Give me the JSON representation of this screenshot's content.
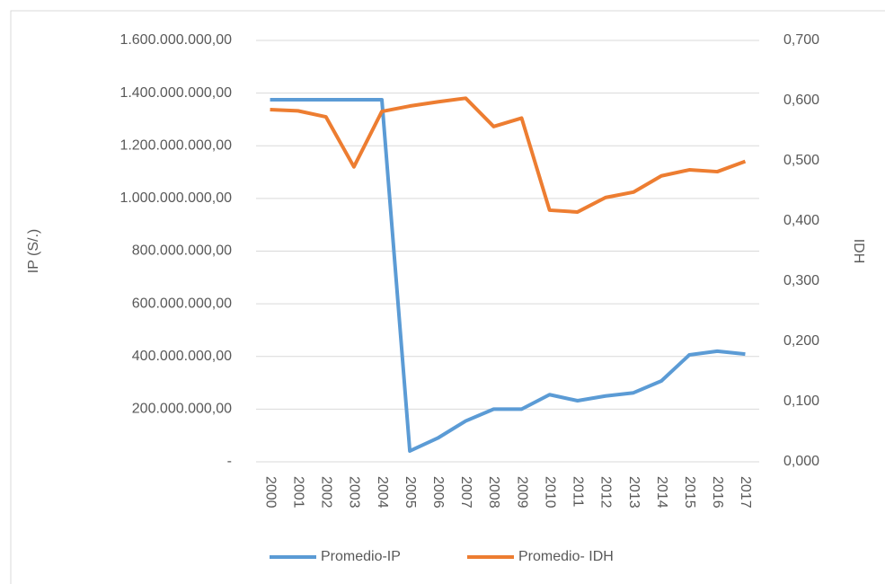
{
  "chart_data": {
    "type": "line",
    "categories": [
      "2000",
      "2001",
      "2002",
      "2003",
      "2004",
      "2005",
      "2006",
      "2007",
      "2008",
      "2009",
      "2010",
      "2011",
      "2012",
      "2013",
      "2014",
      "2015",
      "2016",
      "2017"
    ],
    "series": [
      {
        "name": "Promedio-IP",
        "color": "#5b9bd5",
        "values": [
          1375000000,
          1375000000,
          1375000000,
          1375000000,
          1375000000,
          41000000,
          90000000,
          155000000,
          200000000,
          200000000,
          255000000,
          232000000,
          250000000,
          262000000,
          307000000,
          406000000,
          420000000,
          409000000
        ]
      },
      {
        "name": "Promedio- IDH",
        "color": "#ed7d31",
        "axis": "y2",
        "values": [
          0.585,
          0.583,
          0.573,
          0.49,
          0.582,
          0.591,
          0.598,
          0.604,
          0.557,
          0.571,
          0.418,
          0.415,
          0.439,
          0.448,
          0.475,
          0.485,
          0.482,
          0.499
        ]
      }
    ],
    "ylabel": "IP (S/.)",
    "y2label": "IDH",
    "ylim": [
      0,
      1600000000
    ],
    "yticks": [
      {
        "value": 0,
        "label": "-"
      },
      {
        "value": 200000000,
        "label": "200.000.000,00"
      },
      {
        "value": 400000000,
        "label": "400.000.000,00"
      },
      {
        "value": 600000000,
        "label": "600.000.000,00"
      },
      {
        "value": 800000000,
        "label": "800.000.000,00"
      },
      {
        "value": 1000000000,
        "label": "1.000.000.000,00"
      },
      {
        "value": 1200000000,
        "label": "1.200.000.000,00"
      },
      {
        "value": 1400000000,
        "label": "1.400.000.000,00"
      },
      {
        "value": 1600000000,
        "label": "1.600.000.000,00"
      }
    ],
    "y2lim": [
      0,
      0.7
    ],
    "y2ticks": [
      {
        "value": 0,
        "label": "0,000"
      },
      {
        "value": 0.1,
        "label": "0,100"
      },
      {
        "value": 0.2,
        "label": "0,200"
      },
      {
        "value": 0.3,
        "label": "0,300"
      },
      {
        "value": 0.4,
        "label": "0,400"
      },
      {
        "value": 0.5,
        "label": "0,500"
      },
      {
        "value": 0.6,
        "label": "0,600"
      },
      {
        "value": 0.7,
        "label": "0,700"
      }
    ],
    "grid": true,
    "legend": "bottom"
  }
}
